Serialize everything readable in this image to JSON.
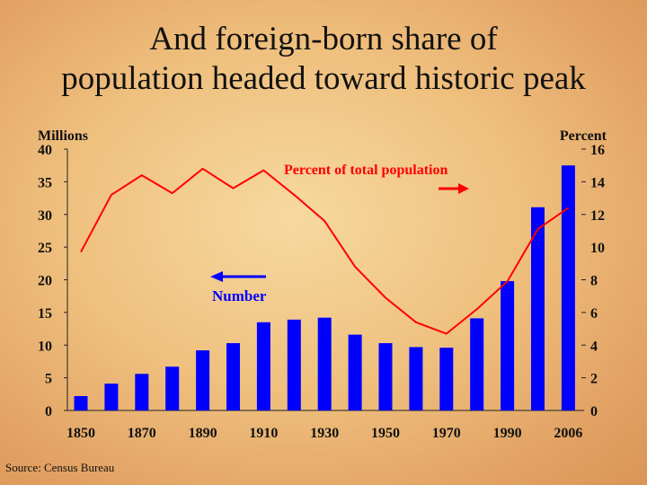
{
  "title_lines": [
    "And foreign-born share of",
    "population headed toward historic peak"
  ],
  "source": "Source: Census Bureau",
  "colors": {
    "bars": "#0000ff",
    "line": "#ff0000",
    "arrow_number": "#0000ff",
    "arrow_percent": "#ff0000"
  },
  "chart_data": {
    "type": "bar",
    "title": "",
    "x_tick_labels": [
      "1850",
      "1870",
      "1890",
      "1910",
      "1930",
      "1950",
      "1970",
      "1990",
      "2006"
    ],
    "left_axis": {
      "label": "Millions",
      "ylim": [
        0,
        40
      ],
      "ticks": [
        "0",
        "5",
        "10",
        "15",
        "20",
        "25",
        "30",
        "35",
        "40"
      ]
    },
    "right_axis": {
      "label": "Percent",
      "ylim": [
        0,
        16
      ],
      "ticks": [
        "0",
        "2",
        "4",
        "6",
        "8",
        "10",
        "12",
        "14",
        "16"
      ]
    },
    "categories": [
      "1850",
      "1860",
      "1870",
      "1880",
      "1890",
      "1900",
      "1910",
      "1920",
      "1930",
      "1940",
      "1950",
      "1960",
      "1970",
      "1980",
      "1990",
      "2000",
      "2006"
    ],
    "series": [
      {
        "name": "Number",
        "type": "bar",
        "axis": "left",
        "values": [
          2.2,
          4.1,
          5.6,
          6.7,
          9.2,
          10.3,
          13.5,
          13.9,
          14.2,
          11.6,
          10.3,
          9.7,
          9.6,
          14.1,
          19.8,
          31.1,
          37.5
        ]
      },
      {
        "name": "Percent of total  population",
        "type": "line",
        "axis": "right",
        "values": [
          9.7,
          13.2,
          14.4,
          13.3,
          14.8,
          13.6,
          14.7,
          13.2,
          11.6,
          8.8,
          6.9,
          5.4,
          4.7,
          6.2,
          7.9,
          11.1,
          12.4
        ]
      }
    ],
    "annotations": [
      {
        "text": "Percent of total  population",
        "arrow": "right"
      },
      {
        "text": "Number",
        "arrow": "left"
      }
    ],
    "grid": false
  }
}
